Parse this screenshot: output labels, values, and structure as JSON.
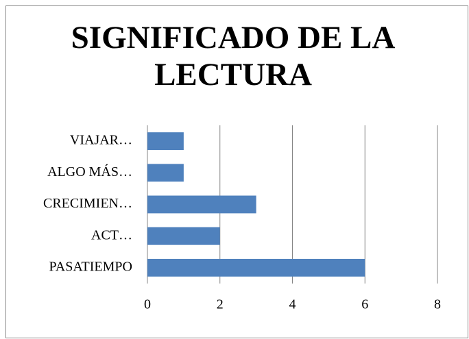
{
  "chart_data": {
    "type": "bar",
    "orientation": "horizontal",
    "title": "SIGNIFICADO DE LA LECTURA",
    "categories": [
      "PASATIEMPO",
      "ACT…",
      "CRECIMIEN…",
      "ALGO MÁS…",
      "VIAJAR…"
    ],
    "values": [
      6,
      2,
      3,
      1,
      1
    ],
    "color": "#4f81bd",
    "xlim": [
      0,
      8
    ],
    "xticks": [
      0,
      2,
      4,
      6,
      8
    ],
    "grid": true
  }
}
